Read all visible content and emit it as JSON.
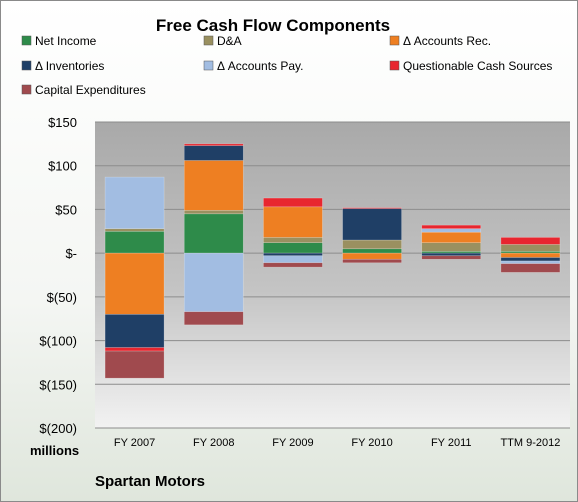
{
  "chart_data": {
    "type": "bar",
    "stacked": true,
    "title": "Free Cash Flow Components",
    "units_label": "millions",
    "footer": "Spartan Motors",
    "categories": [
      "FY 2007",
      "FY 2008",
      "FY 2009",
      "FY 2010",
      "FY 2011",
      "TTM 9-2012"
    ],
    "yticks": [
      "$150",
      "$100",
      "$50",
      "$-",
      "$(50)",
      "$(100)",
      "$(150)",
      "$(200)"
    ],
    "ylim": [
      -200,
      150
    ],
    "grid": true,
    "legend_position": "top",
    "series": [
      {
        "name": "Net Income",
        "color": "#2e8b4a",
        "values": [
          25,
          45,
          12,
          5,
          2,
          2
        ]
      },
      {
        "name": "D&A",
        "color": "#9a9060",
        "values": [
          3,
          4,
          6,
          10,
          10,
          8
        ]
      },
      {
        "name": "Δ Accounts Rec.",
        "color": "#ee7f22",
        "values": [
          -70,
          57,
          35,
          -7,
          12,
          -5
        ]
      },
      {
        "name": "Δ Inventories",
        "color": "#1f3f66",
        "values": [
          -38,
          17,
          -3,
          36,
          -3,
          -4
        ]
      },
      {
        "name": "Δ Accounts Pay.",
        "color": "#a2bde2",
        "values": [
          59,
          -67,
          -8,
          0,
          4,
          -3
        ]
      },
      {
        "name": "Questionable Cash Sources",
        "color": "#e8262f",
        "values": [
          -4,
          2,
          10,
          1,
          4,
          8
        ]
      },
      {
        "name": "Capital Expenditures",
        "color": "#a04a4e",
        "values": [
          -31,
          -15,
          -5,
          -4,
          -4,
          -10
        ]
      }
    ]
  }
}
